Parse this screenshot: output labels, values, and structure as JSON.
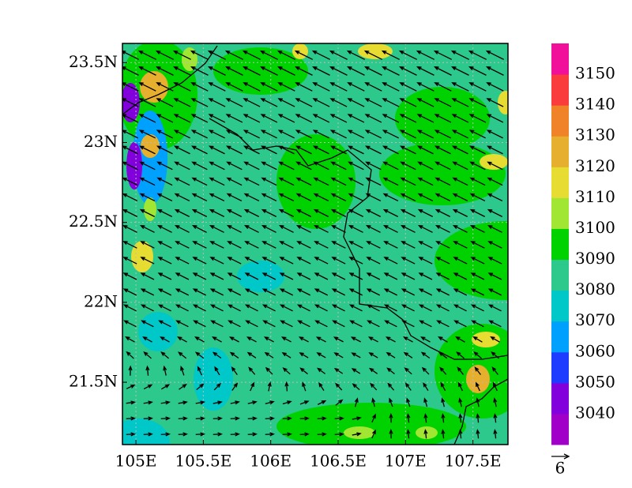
{
  "map": {
    "xlim": [
      104.9,
      107.76
    ],
    "ylim": [
      21.11,
      23.62
    ],
    "x_axis": {
      "ticks": [
        {
          "value": 105,
          "label": "105E"
        },
        {
          "value": 105.5,
          "label": "105.5E"
        },
        {
          "value": 106,
          "label": "106E"
        },
        {
          "value": 106.5,
          "label": "106.5E"
        },
        {
          "value": 107,
          "label": "107E"
        },
        {
          "value": 107.5,
          "label": "107.5E"
        }
      ]
    },
    "y_axis": {
      "ticks": [
        {
          "value": 21.5,
          "label": "21.5N"
        },
        {
          "value": 22,
          "label": "22N"
        },
        {
          "value": 22.5,
          "label": "22.5N"
        },
        {
          "value": 23,
          "label": "23N"
        },
        {
          "value": 23.5,
          "label": "23.5N"
        }
      ]
    },
    "colorbar": {
      "levels": [
        3040,
        3050,
        3060,
        3070,
        3080,
        3090,
        3100,
        3110,
        3120,
        3130,
        3140,
        3150
      ],
      "colors": [
        "#a000c8",
        "#8200dc",
        "#1e3cff",
        "#00a0ff",
        "#00c8c8",
        "#2dc88c",
        "#00d200",
        "#a0e632",
        "#e6dc32",
        "#e6af2d",
        "#f08228",
        "#fa3c3c",
        "#f0109a"
      ]
    },
    "vector_reference": {
      "label": 6
    }
  }
}
